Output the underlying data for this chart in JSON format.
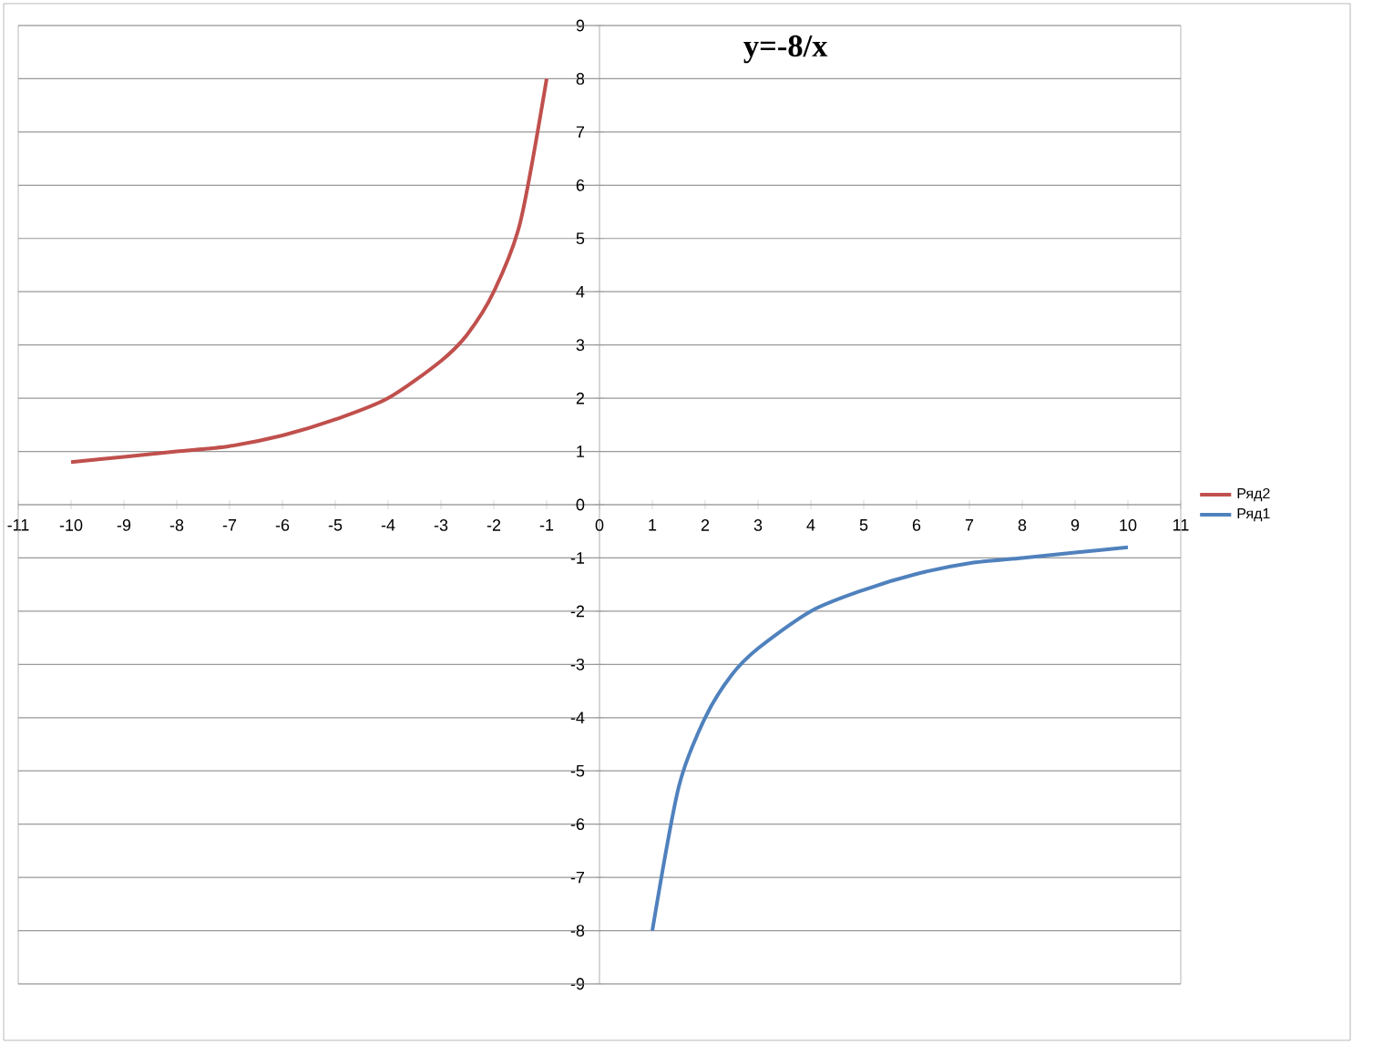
{
  "chart_data": {
    "type": "line",
    "title": "y=-8/x",
    "series": [
      {
        "name": "Ряд2",
        "color": "#c0504d",
        "x": [
          -10,
          -9,
          -8,
          -7,
          -6,
          -5,
          -4,
          -3,
          -2.5,
          -2,
          -1.5,
          -1
        ],
        "values": [
          0.8,
          0.9,
          1,
          1.1,
          1.3,
          1.6,
          2,
          2.7,
          3.2,
          4,
          5.3,
          8
        ]
      },
      {
        "name": "Ряд1",
        "color": "#4f81bd",
        "x": [
          1,
          1.5,
          2,
          2.5,
          3,
          4,
          5,
          6,
          7,
          8,
          9,
          10
        ],
        "values": [
          -8,
          -5.3,
          -4,
          -3.2,
          -2.7,
          -2,
          -1.6,
          -1.3,
          -1.1,
          -1,
          -0.9,
          -0.8
        ]
      }
    ],
    "xlim": [
      -11,
      11
    ],
    "xticks": [
      -11,
      -10,
      -9,
      -8,
      -7,
      -6,
      -5,
      -4,
      -3,
      -2,
      -1,
      0,
      1,
      2,
      3,
      4,
      5,
      6,
      7,
      8,
      9,
      10,
      11
    ],
    "ylim": [
      -9,
      9
    ],
    "yticks": [
      -9,
      -8,
      -7,
      -6,
      -5,
      -4,
      -3,
      -2,
      -1,
      0,
      1,
      2,
      3,
      4,
      5,
      6,
      7,
      8,
      9
    ],
    "grid": "y",
    "legend": "right",
    "marker": "none",
    "line_style": "solid"
  }
}
